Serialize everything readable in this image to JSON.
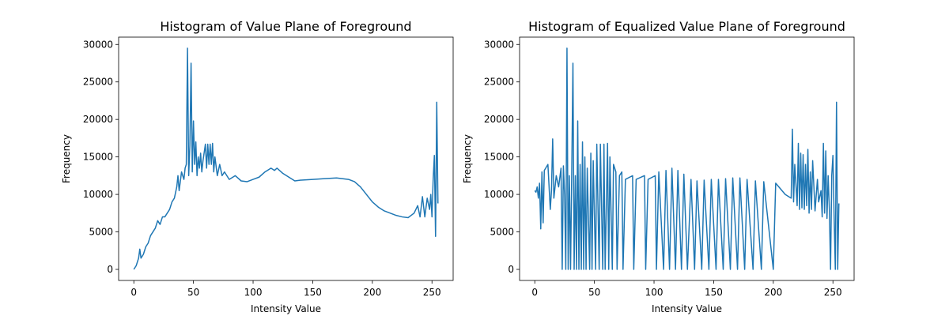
{
  "chart_data": [
    {
      "type": "line",
      "title": "Histogram of Value Plane of Foreground",
      "x_label": "Intensity Value",
      "y_label": "Frequency",
      "color": "#1f77b4",
      "x": [
        0,
        2,
        4,
        5,
        6,
        8,
        10,
        12,
        14,
        16,
        18,
        20,
        22,
        24,
        26,
        28,
        30,
        32,
        34,
        36,
        37,
        38,
        40,
        42,
        43,
        44,
        45,
        46,
        47,
        48,
        49,
        50,
        51,
        52,
        53,
        54,
        55,
        56,
        57,
        58,
        60,
        61,
        62,
        63,
        64,
        65,
        66,
        67,
        68,
        70,
        72,
        74,
        76,
        80,
        85,
        90,
        95,
        100,
        105,
        110,
        115,
        118,
        120,
        125,
        130,
        135,
        140,
        150,
        160,
        170,
        180,
        185,
        190,
        195,
        200,
        205,
        210,
        215,
        220,
        225,
        230,
        235,
        238,
        240,
        242,
        244,
        246,
        248,
        249,
        250,
        251,
        252,
        253,
        254,
        255
      ],
      "values": [
        0,
        500,
        1500,
        2700,
        1500,
        2000,
        3000,
        3500,
        4500,
        5000,
        5500,
        6500,
        6000,
        7000,
        7000,
        7500,
        8000,
        9000,
        9500,
        11000,
        12500,
        10500,
        13000,
        12000,
        13500,
        14000,
        29500,
        12500,
        16500,
        27500,
        13000,
        19800,
        14000,
        17000,
        12500,
        15000,
        13500,
        15500,
        13000,
        14500,
        16700,
        13500,
        16700,
        14000,
        16700,
        14000,
        16800,
        13000,
        15000,
        12500,
        14000,
        12500,
        13000,
        12000,
        12500,
        11800,
        11700,
        12000,
        12300,
        13000,
        13500,
        13200,
        13500,
        12800,
        12300,
        11800,
        11900,
        12000,
        12100,
        12200,
        12000,
        11700,
        11000,
        10000,
        9000,
        8300,
        7800,
        7500,
        7200,
        7000,
        6900,
        7500,
        8500,
        7000,
        9700,
        7000,
        9500,
        8000,
        10000,
        7000,
        12000,
        15200,
        4400,
        22300,
        8800
      ],
      "xlim": [
        -12.75,
        267.75
      ],
      "ylim": [
        -1475,
        30975
      ],
      "xticks": [
        0,
        50,
        100,
        150,
        200,
        250
      ],
      "yticks": [
        0,
        5000,
        10000,
        15000,
        20000,
        25000,
        30000
      ]
    },
    {
      "type": "line",
      "title": "Histogram of Equalized Value Plane of Foreground",
      "x_label": "Intensity Value",
      "y_label": "Frequency",
      "color": "#1f77b4",
      "x": [
        0,
        1,
        2,
        3,
        4,
        5,
        6,
        7,
        8,
        11,
        13,
        14,
        15,
        16,
        18,
        20,
        22,
        23,
        24,
        25,
        26,
        27,
        28,
        29,
        30,
        31,
        32,
        33,
        34,
        35,
        36,
        37,
        38,
        39,
        40,
        41,
        42,
        43,
        44,
        46,
        47,
        48,
        49,
        51,
        52,
        54,
        55,
        57,
        58,
        59,
        61,
        62,
        63,
        65,
        66,
        68,
        69,
        71,
        73,
        74,
        76,
        82,
        83,
        85,
        92,
        93,
        95,
        101,
        102,
        104,
        108,
        110,
        113,
        115,
        118,
        120,
        123,
        125,
        128,
        131,
        134,
        136,
        140,
        142,
        146,
        148,
        152,
        154,
        158,
        160,
        164,
        166,
        170,
        172,
        176,
        178,
        183,
        185,
        190,
        192,
        200,
        202,
        210,
        215,
        216,
        217,
        218,
        220,
        221,
        222,
        223,
        224,
        225,
        226,
        227,
        228,
        229,
        230,
        231,
        232,
        233,
        235,
        237,
        238,
        240,
        241,
        242,
        243,
        244,
        245,
        246,
        247,
        248,
        249,
        250,
        251,
        252,
        253,
        254,
        255
      ],
      "values": [
        10500,
        10300,
        11000,
        9500,
        11500,
        5400,
        13000,
        6200,
        13200,
        14000,
        8000,
        10500,
        17400,
        9500,
        12500,
        11000,
        13500,
        0,
        13800,
        10000,
        0,
        29500,
        0,
        12500,
        0,
        13000,
        27500,
        0,
        12500,
        0,
        19800,
        0,
        14000,
        0,
        17000,
        0,
        15000,
        0,
        13500,
        0,
        15500,
        0,
        14500,
        0,
        16700,
        0,
        16700,
        0,
        16700,
        0,
        16800,
        0,
        15000,
        0,
        14000,
        13000,
        0,
        12500,
        13000,
        0,
        12000,
        12500,
        0,
        12000,
        12500,
        0,
        12000,
        12500,
        0,
        13000,
        0,
        13200,
        0,
        13500,
        0,
        13200,
        0,
        12700,
        0,
        12000,
        0,
        11800,
        0,
        11900,
        0,
        12000,
        0,
        12000,
        0,
        12100,
        0,
        12200,
        0,
        12200,
        0,
        12000,
        0,
        11800,
        0,
        11700,
        0,
        11500,
        10000,
        9500,
        18700,
        9000,
        14000,
        8500,
        16800,
        8000,
        15500,
        8200,
        15300,
        8000,
        14000,
        8500,
        16000,
        7500,
        13000,
        8000,
        14500,
        7800,
        12000,
        9000,
        10500,
        7000,
        16800,
        7500,
        15800,
        6800,
        12500,
        8000,
        0,
        12500,
        15200,
        7000,
        0,
        22300,
        0,
        8800
      ],
      "xlim": [
        -12.75,
        267.75
      ],
      "ylim": [
        -1475,
        30975
      ],
      "xticks": [
        0,
        50,
        100,
        150,
        200,
        250
      ],
      "yticks": [
        0,
        5000,
        10000,
        15000,
        20000,
        25000,
        30000
      ]
    }
  ]
}
